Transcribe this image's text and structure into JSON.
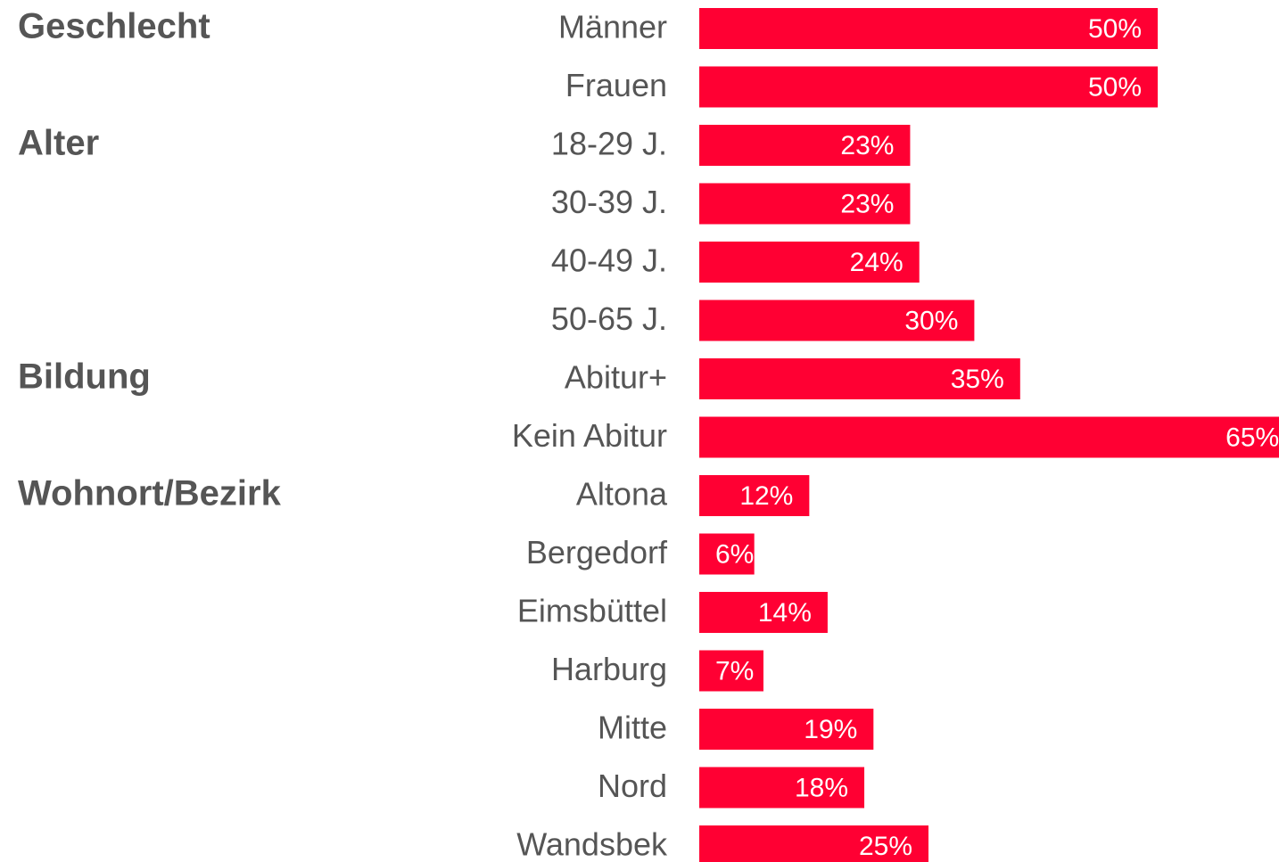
{
  "chart_data": {
    "type": "bar",
    "color": "#ff0033",
    "groups": [
      {
        "name": "Geschlecht",
        "categories": [
          "Männer",
          "Frauen"
        ],
        "values": [
          50,
          50
        ],
        "value_labels": [
          "50%",
          "50%"
        ]
      },
      {
        "name": "Alter",
        "categories": [
          "18-29 J.",
          "30-39 J.",
          "40-49 J.",
          "50-65 J."
        ],
        "values": [
          23,
          23,
          24,
          30
        ],
        "value_labels": [
          "23%",
          "23%",
          "24%",
          "30%"
        ]
      },
      {
        "name": "Bildung",
        "categories": [
          "Abitur+",
          "Kein Abitur"
        ],
        "values": [
          35,
          65
        ],
        "value_labels": [
          "35%",
          "65%"
        ]
      },
      {
        "name": "Wohnort/Bezirk",
        "categories": [
          "Altona",
          "Bergedorf",
          "Eimsbüttel",
          "Harburg",
          "Mitte",
          "Nord",
          "Wandsbek"
        ],
        "values": [
          12,
          6,
          14,
          7,
          19,
          18,
          25
        ],
        "value_labels": [
          "12%",
          "6%",
          "14%",
          "7%",
          "19%",
          "18%",
          "25%"
        ]
      }
    ]
  }
}
